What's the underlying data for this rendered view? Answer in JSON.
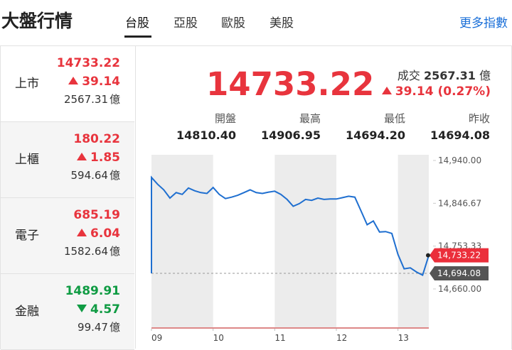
{
  "header": {
    "title": "大盤行情",
    "tabs": [
      "台股",
      "亞股",
      "歐股",
      "美股"
    ],
    "more": "更多指數"
  },
  "sidebar": [
    {
      "name": "上市",
      "price": "14733.22",
      "change": "39.14",
      "volume": "2567.31",
      "unit": "億",
      "direction": "up"
    },
    {
      "name": "上櫃",
      "price": "180.22",
      "change": "1.85",
      "volume": "594.64",
      "unit": "億",
      "direction": "up"
    },
    {
      "name": "電子",
      "price": "685.19",
      "change": "6.04",
      "volume": "1582.64",
      "unit": "億",
      "direction": "up"
    },
    {
      "name": "金融",
      "price": "1489.91",
      "change": "4.57",
      "volume": "99.47",
      "unit": "億",
      "direction": "down"
    }
  ],
  "quote": {
    "price": "14733.22",
    "volume_label": "成交",
    "volume": "2567.31",
    "unit": "億",
    "change": "39.14",
    "percent": "(0.27%)",
    "direction": "up",
    "stats": [
      {
        "label": "開盤",
        "value": "14810.40"
      },
      {
        "label": "最高",
        "value": "14906.95"
      },
      {
        "label": "最低",
        "value": "14694.20"
      },
      {
        "label": "昨收",
        "value": "14694.08"
      }
    ]
  },
  "chart_data": {
    "type": "line",
    "color": "#1f6fd0",
    "x": [
      9.0,
      9.1,
      9.2,
      9.3,
      9.4,
      9.5,
      9.6,
      9.7,
      9.8,
      9.9,
      10.0,
      10.1,
      10.2,
      10.3,
      10.4,
      10.5,
      10.6,
      10.7,
      10.8,
      10.9,
      11.0,
      11.1,
      11.2,
      11.3,
      11.4,
      11.5,
      11.6,
      11.7,
      11.8,
      11.9,
      12.0,
      12.1,
      12.2,
      12.3,
      12.4,
      12.5,
      12.6,
      12.7,
      12.8,
      12.9,
      13.0,
      13.1,
      13.2,
      13.3,
      13.4,
      13.5
    ],
    "values": [
      14903,
      14888,
      14876,
      14858,
      14870,
      14866,
      14880,
      14874,
      14870,
      14868,
      14881,
      14866,
      14857,
      14860,
      14864,
      14870,
      14876,
      14870,
      14868,
      14871,
      14873,
      14866,
      14855,
      14840,
      14846,
      14855,
      14853,
      14858,
      14855,
      14856,
      14856,
      14859,
      14862,
      14860,
      14830,
      14800,
      14808,
      14784,
      14785,
      14781,
      14735,
      14704,
      14706,
      14697,
      14690,
      14733.22
    ],
    "xlim": [
      9,
      13.5
    ],
    "ylim": [
      14660,
      14940
    ],
    "xticks": [
      {
        "value": 9,
        "label": "09"
      },
      {
        "value": 10,
        "label": "10"
      },
      {
        "value": 11,
        "label": "11"
      },
      {
        "value": 12,
        "label": "12"
      },
      {
        "value": 13,
        "label": "13"
      }
    ],
    "yticks": [
      {
        "value": 14940,
        "label": "14,940.00"
      },
      {
        "value": 14846.67,
        "label": "14,846.67"
      },
      {
        "value": 14753.33,
        "label": "14,753.33"
      },
      {
        "value": 14660,
        "label": "14,660.00"
      }
    ],
    "reference_line": {
      "value": 14694.08,
      "label": "14,694.08",
      "color": "#555555"
    },
    "last_label": {
      "value": 14733.22,
      "label": "14,733.22",
      "color": "#eb2f3b"
    }
  }
}
